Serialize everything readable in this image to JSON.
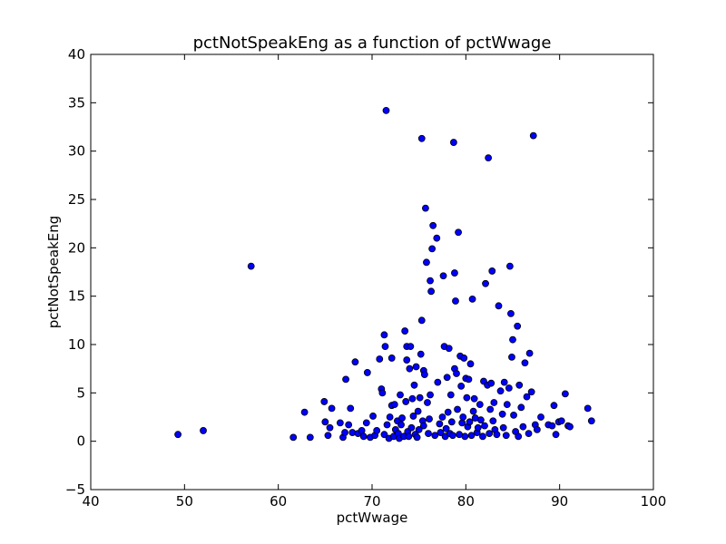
{
  "chart_data": {
    "type": "scatter",
    "title": "pctNotSpeakEng as a function of pctWwage",
    "xlabel": "pctWwage",
    "ylabel": "pctNotSpeakEng",
    "xlim": [
      40,
      100
    ],
    "ylim": [
      -5,
      40
    ],
    "xticks": [
      40,
      50,
      60,
      70,
      80,
      90,
      100
    ],
    "yticks": [
      -5,
      0,
      5,
      10,
      15,
      20,
      25,
      30,
      35,
      40
    ],
    "xtick_labels": [
      "40",
      "50",
      "60",
      "70",
      "80",
      "90",
      "100"
    ],
    "ytick_labels": [
      "−5",
      "0",
      "5",
      "10",
      "15",
      "20",
      "25",
      "30",
      "35",
      "40"
    ],
    "grid": false,
    "legend": false,
    "point_color": "#0000ff",
    "edge_color": "#000000",
    "points": [
      [
        49.3,
        0.7
      ],
      [
        52.0,
        1.1
      ],
      [
        57.1,
        18.1
      ],
      [
        61.6,
        0.4
      ],
      [
        62.8,
        3.0
      ],
      [
        63.4,
        0.4
      ],
      [
        64.9,
        4.1
      ],
      [
        65.0,
        2.0
      ],
      [
        65.3,
        0.6
      ],
      [
        65.5,
        1.4
      ],
      [
        65.7,
        3.4
      ],
      [
        66.6,
        1.9
      ],
      [
        66.9,
        0.4
      ],
      [
        67.1,
        0.9
      ],
      [
        67.2,
        6.4
      ],
      [
        67.5,
        1.7
      ],
      [
        67.7,
        3.4
      ],
      [
        67.9,
        0.9
      ],
      [
        68.2,
        8.2
      ],
      [
        68.5,
        0.8
      ],
      [
        68.9,
        1.1
      ],
      [
        69.1,
        0.5
      ],
      [
        69.4,
        1.9
      ],
      [
        69.5,
        7.1
      ],
      [
        69.8,
        0.4
      ],
      [
        70.1,
        2.6
      ],
      [
        70.3,
        0.6
      ],
      [
        70.5,
        1.1
      ],
      [
        70.8,
        8.5
      ],
      [
        71.0,
        5.4
      ],
      [
        71.1,
        5.0
      ],
      [
        71.3,
        0.7
      ],
      [
        71.3,
        11.0
      ],
      [
        71.4,
        9.8
      ],
      [
        71.5,
        34.2
      ],
      [
        71.6,
        1.7
      ],
      [
        71.8,
        0.3
      ],
      [
        71.9,
        2.5
      ],
      [
        72.1,
        3.7
      ],
      [
        72.1,
        8.6
      ],
      [
        72.3,
        0.5
      ],
      [
        72.4,
        3.8
      ],
      [
        72.5,
        1.2
      ],
      [
        72.7,
        2.1
      ],
      [
        72.8,
        0.8
      ],
      [
        72.9,
        0.3
      ],
      [
        73.0,
        4.8
      ],
      [
        73.1,
        1.7
      ],
      [
        73.2,
        2.4
      ],
      [
        73.4,
        0.5
      ],
      [
        73.5,
        11.4
      ],
      [
        73.6,
        4.1
      ],
      [
        73.7,
        9.8
      ],
      [
        73.7,
        8.4
      ],
      [
        73.8,
        1.0
      ],
      [
        73.9,
        0.5
      ],
      [
        74.0,
        7.5
      ],
      [
        74.1,
        9.8
      ],
      [
        74.2,
        1.4
      ],
      [
        74.3,
        4.4
      ],
      [
        74.4,
        2.6
      ],
      [
        74.5,
        5.8
      ],
      [
        74.6,
        0.7
      ],
      [
        74.7,
        7.7
      ],
      [
        74.8,
        0.4
      ],
      [
        74.9,
        3.1
      ],
      [
        75.0,
        1.2
      ],
      [
        75.1,
        4.5
      ],
      [
        75.2,
        9.0
      ],
      [
        75.3,
        31.3
      ],
      [
        75.3,
        12.5
      ],
      [
        75.4,
        2.1
      ],
      [
        75.5,
        7.3
      ],
      [
        75.5,
        1.6
      ],
      [
        75.6,
        6.9
      ],
      [
        75.7,
        24.1
      ],
      [
        75.8,
        18.5
      ],
      [
        75.9,
        4.0
      ],
      [
        76.0,
        0.8
      ],
      [
        76.1,
        2.3
      ],
      [
        76.2,
        16.6
      ],
      [
        76.2,
        4.8
      ],
      [
        76.3,
        15.5
      ],
      [
        76.4,
        19.9
      ],
      [
        76.5,
        22.3
      ],
      [
        76.7,
        0.6
      ],
      [
        76.9,
        21.0
      ],
      [
        77.0,
        6.1
      ],
      [
        77.2,
        1.8
      ],
      [
        77.3,
        0.9
      ],
      [
        77.5,
        2.5
      ],
      [
        77.6,
        17.1
      ],
      [
        77.7,
        9.8
      ],
      [
        77.8,
        0.5
      ],
      [
        77.9,
        1.3
      ],
      [
        78.0,
        6.6
      ],
      [
        78.1,
        3.0
      ],
      [
        78.2,
        9.6
      ],
      [
        78.3,
        0.8
      ],
      [
        78.4,
        4.8
      ],
      [
        78.5,
        2.0
      ],
      [
        78.6,
        0.6
      ],
      [
        78.7,
        30.9
      ],
      [
        78.8,
        17.4
      ],
      [
        78.8,
        7.5
      ],
      [
        78.9,
        14.5
      ],
      [
        79.0,
        7.0
      ],
      [
        79.1,
        3.3
      ],
      [
        79.2,
        21.6
      ],
      [
        79.3,
        0.7
      ],
      [
        79.4,
        8.8
      ],
      [
        79.5,
        5.7
      ],
      [
        79.6,
        1.9
      ],
      [
        79.7,
        2.5
      ],
      [
        79.8,
        8.6
      ],
      [
        79.9,
        0.5
      ],
      [
        80.0,
        6.5
      ],
      [
        80.1,
        4.5
      ],
      [
        80.2,
        1.5
      ],
      [
        80.3,
        6.4
      ],
      [
        80.4,
        2.0
      ],
      [
        80.5,
        8.0
      ],
      [
        80.6,
        0.6
      ],
      [
        80.7,
        14.7
      ],
      [
        80.8,
        3.1
      ],
      [
        80.9,
        4.4
      ],
      [
        81.0,
        2.4
      ],
      [
        81.2,
        0.9
      ],
      [
        81.3,
        1.4
      ],
      [
        81.5,
        3.8
      ],
      [
        81.6,
        2.2
      ],
      [
        81.8,
        0.5
      ],
      [
        81.9,
        6.2
      ],
      [
        82.0,
        1.6
      ],
      [
        82.1,
        16.3
      ],
      [
        82.3,
        5.8
      ],
      [
        82.4,
        29.3
      ],
      [
        82.5,
        0.8
      ],
      [
        82.6,
        3.3
      ],
      [
        82.7,
        6.0
      ],
      [
        82.8,
        17.6
      ],
      [
        82.9,
        2.1
      ],
      [
        83.0,
        4.0
      ],
      [
        83.1,
        1.2
      ],
      [
        83.3,
        0.7
      ],
      [
        83.5,
        14.0
      ],
      [
        83.7,
        5.2
      ],
      [
        83.9,
        2.8
      ],
      [
        84.0,
        1.4
      ],
      [
        84.1,
        6.1
      ],
      [
        84.3,
        0.6
      ],
      [
        84.4,
        3.8
      ],
      [
        84.6,
        5.5
      ],
      [
        84.7,
        18.1
      ],
      [
        84.8,
        13.2
      ],
      [
        84.9,
        8.7
      ],
      [
        85.0,
        10.5
      ],
      [
        85.1,
        2.7
      ],
      [
        85.3,
        1.0
      ],
      [
        85.5,
        11.9
      ],
      [
        85.6,
        0.5
      ],
      [
        85.7,
        5.8
      ],
      [
        85.9,
        3.5
      ],
      [
        86.1,
        1.5
      ],
      [
        86.3,
        8.1
      ],
      [
        86.5,
        4.6
      ],
      [
        86.7,
        0.8
      ],
      [
        86.8,
        9.1
      ],
      [
        87.0,
        5.1
      ],
      [
        87.2,
        31.6
      ],
      [
        87.4,
        1.7
      ],
      [
        87.6,
        1.2
      ],
      [
        88.0,
        2.5
      ],
      [
        88.8,
        1.7
      ],
      [
        89.2,
        1.6
      ],
      [
        89.4,
        3.7
      ],
      [
        89.6,
        0.7
      ],
      [
        89.9,
        2.0
      ],
      [
        90.2,
        2.1
      ],
      [
        90.6,
        4.9
      ],
      [
        90.9,
        1.6
      ],
      [
        91.1,
        1.5
      ],
      [
        93.0,
        3.4
      ],
      [
        93.4,
        2.1
      ]
    ]
  }
}
